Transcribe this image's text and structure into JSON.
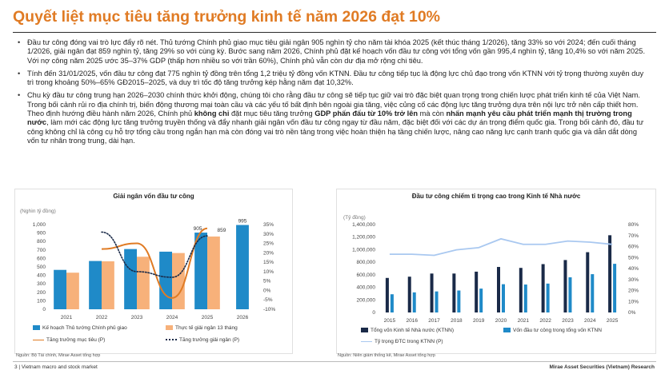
{
  "page": {
    "title": "Quyết liệt mục tiêu tăng trưởng kinh tế năm 2026 đạt 10%",
    "footer_left": "3 | Vietnam macro and stock market",
    "footer_right": "Mirae Asset Securities (Vietnam) Research"
  },
  "bullets": [
    {
      "parts": [
        {
          "t": "Đầu tư công đóng vai trò lực đẩy rõ nét. Thủ tướng Chính phủ giao mục tiêu giải ngân 905 nghìn tỷ cho năm tài khóa 2025 (kết thúc tháng 1/2026), tăng 33% so với 2024; đến cuối tháng 1/2026, giải ngân đạt 859 nghìn tỷ, tăng 29% so với cùng kỳ. Bước sang năm 2026, Chính phủ đặt kế hoạch vốn đầu tư công với tổng vốn gần 995,4 nghìn tỷ, tăng 10,4% so với năm 2025. Với nợ công năm 2025 ước 35–37% GDP (thấp hơn nhiều so với trần 60%), Chính phủ vẫn còn dư địa mở rộng chi tiêu.",
          "b": false
        }
      ]
    },
    {
      "parts": [
        {
          "t": "Tính đến 31/01/2025, vốn đầu tư công đạt 775 nghìn tỷ đồng trên tổng 1,2 triệu tỷ đồng vốn KTNN. Đầu tư công tiếp tục là động lực chủ đạo trong vốn KTNN với tỷ trọng thường xuyên duy trì trong khoảng 50%–65% GĐ2015–2025, và duy trì tốc độ tăng trưởng kép hằng năm đạt 10,32%.",
          "b": false
        }
      ]
    },
    {
      "parts": [
        {
          "t": "Chu kỳ đầu tư công trung hạn 2026–2030 chính thức khởi động, chúng tôi cho rằng đầu tư công sẽ tiếp tục giữ vai trò đặc biệt quan trọng trong chiến lược phát triển kinh tế của Việt Nam. Trong bối cảnh rủi ro địa chính trị, biến động thương mại toàn cầu và các yếu tố bất định bên ngoài gia tăng, việc củng cố các động lực tăng trưởng dựa trên nội lực trở nên cấp thiết hơn. Theo định hướng điều hành năm 2026, Chính phủ ",
          "b": false
        },
        {
          "t": "không chỉ",
          "b": true
        },
        {
          "t": " đặt mục tiêu tăng trưởng ",
          "b": false
        },
        {
          "t": "GDP phấn đấu từ 10% trở lên",
          "b": true
        },
        {
          "t": " mà còn ",
          "b": false
        },
        {
          "t": "nhấn mạnh yêu cầu phát triển mạnh thị trường trong nước",
          "b": true
        },
        {
          "t": ", làm mới các động lực tăng trưởng truyền thống và đẩy nhanh giải ngân vốn đầu tư công ngay từ đầu năm, đặc biệt đối với các dự án trọng điểm quốc gia. Trong bối cảnh đó, đầu tư công không chỉ là công cụ hỗ trợ tổng cầu trong ngắn hạn mà còn đóng vai trò nền tảng trong việc hoàn thiện hạ tầng chiến lược, nâng cao năng lực cạnh tranh quốc gia và dẫn dắt dòng vốn tư nhân trong trung, dài hạn.",
          "b": false
        }
      ]
    }
  ],
  "colors": {
    "title": "#e07b24",
    "blue": "#1f8ac8",
    "orange": "#f7b17a",
    "orange_line": "#e07b24",
    "navy": "#1a2a48",
    "teal": "#1f8ac8",
    "light_blue": "#a9c8f0"
  },
  "chart_data": [
    {
      "type": "bar",
      "title": "Giải ngân vốn đầu tư công",
      "unit_left": "(Nghìn tỷ đồng)",
      "categories": [
        "2021",
        "2022",
        "2023",
        "2024",
        "2025",
        "2026"
      ],
      "ylim": [
        0,
        1000
      ],
      "yticks": [
        "0",
        "100",
        "200",
        "300",
        "400",
        "500",
        "600",
        "700",
        "800",
        "900",
        "1,000"
      ],
      "y2lim": [
        -10,
        35
      ],
      "y2ticks": [
        "-10%",
        "-5%",
        "0%",
        "5%",
        "10%",
        "15%",
        "20%",
        "25%",
        "30%",
        "35%"
      ],
      "series": [
        {
          "name": "Kế hoạch Thủ tướng Chính phủ giao",
          "kind": "bar",
          "axis": "left",
          "values": [
            465,
            570,
            711,
            680,
            905,
            995
          ]
        },
        {
          "name": "Thực tế giải ngân 13 tháng",
          "kind": "bar",
          "axis": "left",
          "values": [
            432,
            566,
            620,
            664,
            859,
            null
          ]
        },
        {
          "name": "Tăng trưởng mục tiêu (P)",
          "kind": "line",
          "axis": "right",
          "values": [
            null,
            22,
            25,
            -4,
            33,
            null
          ]
        },
        {
          "name": "Tăng trưởng giải ngân (P)",
          "kind": "dotted-line",
          "axis": "right",
          "values": [
            null,
            31,
            10,
            7,
            29,
            null
          ]
        }
      ],
      "data_labels": [
        "905",
        "859",
        "995"
      ],
      "source": "Nguồn: Bộ Tài chính, Mirae Asset tổng hợp"
    },
    {
      "type": "bar",
      "title": "Đầu tư công chiếm tỉ trọng cao trong Kinh tế Nhà nước",
      "unit_left": "(Tỷ đồng)",
      "categories": [
        "2015",
        "2016",
        "2017",
        "2018",
        "2019",
        "2020",
        "2021",
        "2022",
        "2023",
        "2024",
        "2025"
      ],
      "ylim": [
        0,
        1400000
      ],
      "yticks": [
        "0",
        "200,000",
        "400,000",
        "600,000",
        "800,000",
        "1,000,000",
        "1,200,000",
        "1,400,000"
      ],
      "y2lim": [
        0,
        80
      ],
      "y2ticks": [
        "0%",
        "10%",
        "20%",
        "30%",
        "40%",
        "50%",
        "60%",
        "70%",
        "80%"
      ],
      "series": [
        {
          "name": "Tổng vốn Kinh tế Nhà nước (KTNN)",
          "kind": "bar",
          "axis": "left",
          "values": [
            550000,
            570000,
            620000,
            620000,
            650000,
            725000,
            710000,
            770000,
            835000,
            960000,
            1230000
          ]
        },
        {
          "name": "Vốn đầu tư công trong tổng vốn KTNN",
          "kind": "bar",
          "axis": "left",
          "values": [
            290000,
            320000,
            335000,
            350000,
            380000,
            450000,
            445000,
            460000,
            560000,
            610000,
            775000
          ]
        },
        {
          "name": "Tỷ trọng ĐTC trong KTNN (P)",
          "kind": "line",
          "axis": "right",
          "values": [
            53,
            53,
            52,
            57,
            59,
            67,
            62,
            62,
            65,
            64,
            62
          ]
        }
      ],
      "source": "Nguồn: Niên giám thống kê, Mirae Asset tổng hợp"
    }
  ]
}
